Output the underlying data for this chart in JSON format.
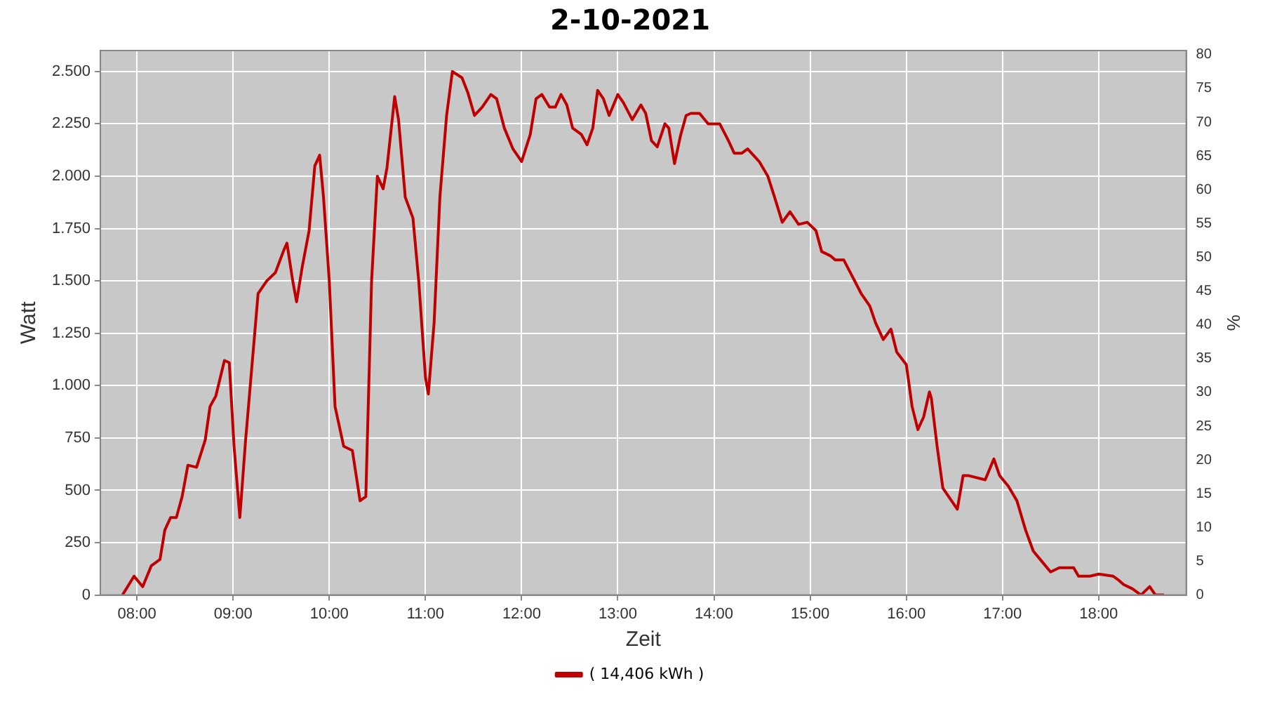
{
  "chart_data": {
    "type": "line",
    "title": "2-10-2021",
    "xlabel": "Zeit",
    "ylabel": "Watt",
    "y2label": "%",
    "xlim": [
      7.62,
      18.91
    ],
    "xticks": [
      {
        "value": 8,
        "label": "08:00"
      },
      {
        "value": 9,
        "label": "09:00"
      },
      {
        "value": 10,
        "label": "10:00"
      },
      {
        "value": 11,
        "label": "11:00"
      },
      {
        "value": 12,
        "label": "12:00"
      },
      {
        "value": 13,
        "label": "13:00"
      },
      {
        "value": 14,
        "label": "14:00"
      },
      {
        "value": 15,
        "label": "15:00"
      },
      {
        "value": 16,
        "label": "16:00"
      },
      {
        "value": 17,
        "label": "17:00"
      },
      {
        "value": 18,
        "label": "18:00"
      }
    ],
    "ylim": [
      0,
      2600
    ],
    "yticks": [
      {
        "value": 0,
        "label": "0"
      },
      {
        "value": 250,
        "label": "250"
      },
      {
        "value": 500,
        "label": "500"
      },
      {
        "value": 750,
        "label": "750"
      },
      {
        "value": 1000,
        "label": "1.000"
      },
      {
        "value": 1250,
        "label": "1.250"
      },
      {
        "value": 1500,
        "label": "1.500"
      },
      {
        "value": 1750,
        "label": "1.750"
      },
      {
        "value": 2000,
        "label": "2.000"
      },
      {
        "value": 2250,
        "label": "2.250"
      },
      {
        "value": 2500,
        "label": "2.500"
      }
    ],
    "y2lim": [
      0,
      80.6
    ],
    "y2ticks": [
      0,
      5,
      10,
      15,
      20,
      25,
      30,
      35,
      40,
      45,
      50,
      55,
      60,
      65,
      70,
      75,
      80
    ],
    "grid": true,
    "legend": "bottom",
    "marker": "none",
    "line_style": "solid",
    "series": [
      {
        "name": "( 14,406 kWh )",
        "color": "#c00000",
        "x": [
          7.85,
          7.97,
          8.06,
          8.15,
          8.24,
          8.29,
          8.35,
          8.41,
          8.47,
          8.53,
          8.62,
          8.71,
          8.76,
          8.82,
          8.91,
          8.96,
          9.01,
          9.07,
          9.13,
          9.21,
          9.26,
          9.35,
          9.44,
          9.53,
          9.56,
          9.62,
          9.66,
          9.72,
          9.79,
          9.85,
          9.9,
          9.94,
          10.0,
          10.06,
          10.15,
          10.24,
          10.32,
          10.38,
          10.44,
          10.5,
          10.56,
          10.6,
          10.68,
          10.72,
          10.79,
          10.87,
          10.93,
          11.0,
          11.03,
          11.09,
          11.15,
          11.22,
          11.28,
          11.38,
          11.44,
          11.51,
          11.59,
          11.68,
          11.74,
          11.82,
          11.91,
          12.0,
          12.09,
          12.15,
          12.21,
          12.29,
          12.35,
          12.41,
          12.47,
          12.53,
          12.62,
          12.68,
          12.74,
          12.79,
          12.85,
          12.91,
          13.0,
          13.06,
          13.15,
          13.24,
          13.29,
          13.35,
          13.41,
          13.49,
          13.53,
          13.59,
          13.65,
          13.71,
          13.76,
          13.85,
          13.94,
          14.06,
          14.15,
          14.21,
          14.29,
          14.35,
          14.47,
          14.56,
          14.63,
          14.71,
          14.79,
          14.88,
          14.97,
          15.06,
          15.12,
          15.21,
          15.26,
          15.35,
          15.44,
          15.53,
          15.62,
          15.68,
          15.76,
          15.84,
          15.9,
          16.0,
          16.06,
          16.12,
          16.18,
          16.24,
          16.26,
          16.32,
          16.38,
          16.47,
          16.53,
          16.59,
          16.65,
          16.82,
          16.91,
          16.97,
          17.06,
          17.15,
          17.24,
          17.32,
          17.41,
          17.5,
          17.59,
          17.65,
          17.74,
          17.79,
          17.91,
          18.0,
          18.15,
          18.21,
          18.26,
          18.35,
          18.44,
          18.53,
          18.59,
          18.68
        ],
        "values": [
          0,
          90,
          40,
          140,
          170,
          310,
          370,
          370,
          470,
          620,
          610,
          740,
          900,
          950,
          1120,
          1110,
          710,
          370,
          740,
          1170,
          1440,
          1500,
          1540,
          1650,
          1680,
          1500,
          1400,
          1570,
          1740,
          2050,
          2100,
          1900,
          1500,
          900,
          710,
          690,
          450,
          470,
          1500,
          2000,
          1940,
          2040,
          2380,
          2270,
          1900,
          1800,
          1500,
          1040,
          960,
          1300,
          1900,
          2290,
          2500,
          2470,
          2400,
          2290,
          2330,
          2390,
          2370,
          2230,
          2130,
          2070,
          2200,
          2370,
          2390,
          2330,
          2330,
          2390,
          2340,
          2230,
          2200,
          2150,
          2230,
          2410,
          2370,
          2290,
          2390,
          2350,
          2270,
          2340,
          2300,
          2170,
          2140,
          2250,
          2230,
          2060,
          2190,
          2290,
          2300,
          2300,
          2250,
          2250,
          2170,
          2110,
          2110,
          2130,
          2070,
          2000,
          1900,
          1780,
          1830,
          1770,
          1780,
          1740,
          1640,
          1620,
          1600,
          1600,
          1520,
          1440,
          1380,
          1300,
          1220,
          1270,
          1160,
          1100,
          900,
          790,
          850,
          970,
          940,
          710,
          510,
          450,
          410,
          570,
          570,
          550,
          650,
          570,
          520,
          450,
          310,
          210,
          160,
          110,
          130,
          130,
          130,
          90,
          90,
          100,
          90,
          70,
          50,
          30,
          0,
          40,
          0,
          0
        ]
      }
    ]
  }
}
